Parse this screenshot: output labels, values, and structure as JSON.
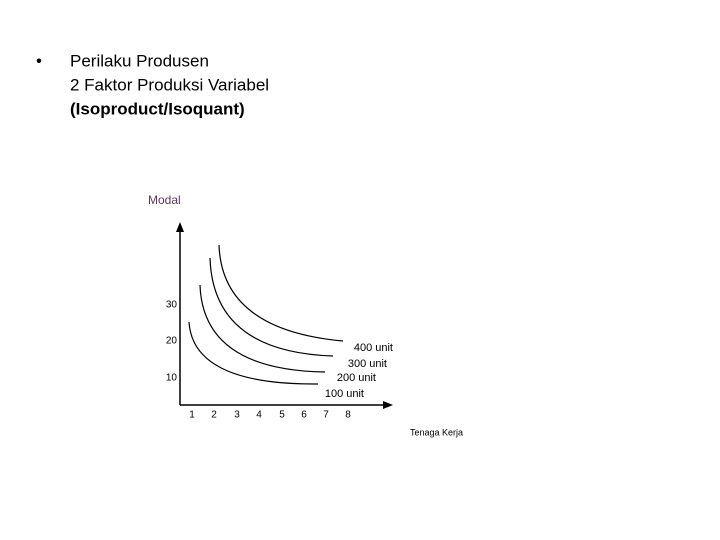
{
  "slide": {
    "bullet_lines": [
      "Perilaku Produsen",
      "2 Faktor Produksi Variabel",
      "(Isoproduct/Isoquant)"
    ],
    "diagram": {
      "y_axis_label": "Modal",
      "x_axis_label": "Tenaga Kerja",
      "y_ticks": [
        30,
        20,
        10
      ],
      "x_ticks": [
        1,
        2,
        3,
        4,
        5,
        6,
        7,
        8
      ],
      "curve_labels": [
        "400 unit",
        "300 unit",
        "200 unit",
        "100 unit"
      ]
    }
  }
}
